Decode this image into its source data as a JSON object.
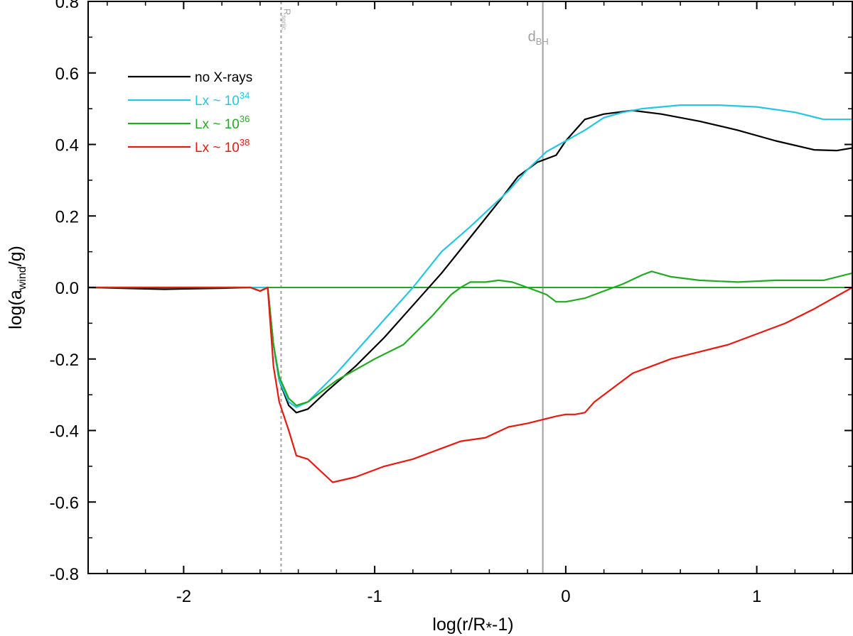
{
  "chart_data": {
    "type": "line",
    "xlabel": {
      "main": "log(r/R",
      "sub": "*",
      "tail": "-1)"
    },
    "ylabel": {
      "main": "log(a",
      "sub": "wind",
      "tail": "/g)"
    },
    "xlim": [
      -2.5,
      1.5
    ],
    "ylim": [
      -0.8,
      0.8
    ],
    "x_ticks": [
      -2,
      -1,
      0,
      1
    ],
    "x_tick_labels": [
      "-2",
      "-1",
      "0",
      "1"
    ],
    "y_ticks": [
      -0.8,
      -0.6,
      -0.4,
      -0.2,
      0.0,
      0.2,
      0.4,
      0.6,
      0.8
    ],
    "y_tick_labels": [
      "-0.8",
      "-0.6",
      "-0.4",
      "-0.2",
      "0.0",
      "0.2",
      "0.4",
      "0.6",
      "0.8"
    ],
    "grid": false,
    "legend_position": "top-left",
    "reference_lines": [
      {
        "label_main": "R",
        "label_sub": "sonic",
        "x": -1.49,
        "style": "dashed",
        "color": "#a0a0a0"
      },
      {
        "label_main": "d",
        "label_sub": "BH",
        "x": -0.12,
        "style": "solid",
        "color": "#a0a0a0"
      },
      {
        "y": 0.0,
        "style": "solid",
        "color": "#22aa22"
      }
    ],
    "series": [
      {
        "name": "no X-rays",
        "name_sup": "",
        "color": "#000000",
        "x": [
          -2.5,
          -2.1,
          -1.8,
          -1.65,
          -1.6,
          -1.56,
          -1.53,
          -1.5,
          -1.45,
          -1.41,
          -1.35,
          -1.25,
          -1.1,
          -0.95,
          -0.8,
          -0.65,
          -0.5,
          -0.35,
          -0.25,
          -0.15,
          -0.05,
          0.0,
          0.05,
          0.1,
          0.2,
          0.35,
          0.5,
          0.7,
          0.9,
          1.1,
          1.3,
          1.42,
          1.5
        ],
        "y": [
          0.0,
          -0.005,
          -0.002,
          0.0,
          -0.01,
          0.0,
          -0.16,
          -0.26,
          -0.33,
          -0.35,
          -0.34,
          -0.29,
          -0.22,
          -0.14,
          -0.05,
          0.04,
          0.14,
          0.24,
          0.31,
          0.35,
          0.37,
          0.41,
          0.44,
          0.47,
          0.485,
          0.495,
          0.485,
          0.465,
          0.44,
          0.41,
          0.385,
          0.383,
          0.39
        ]
      },
      {
        "name": "Lx ~ 10",
        "name_sup": "34",
        "color": "#25c6e0",
        "x": [
          -2.5,
          -2.1,
          -1.8,
          -1.65,
          -1.6,
          -1.56,
          -1.53,
          -1.5,
          -1.45,
          -1.41,
          -1.35,
          -1.2,
          -1.0,
          -0.8,
          -0.65,
          -0.5,
          -0.4,
          -0.3,
          -0.2,
          -0.1,
          0.0,
          0.1,
          0.2,
          0.3,
          0.4,
          0.5,
          0.6,
          0.8,
          1.0,
          1.2,
          1.35,
          1.5
        ],
        "y": [
          0.0,
          0.0,
          0.0,
          0.0,
          0.0,
          0.0,
          -0.16,
          -0.26,
          -0.32,
          -0.335,
          -0.32,
          -0.24,
          -0.12,
          0.0,
          0.1,
          0.17,
          0.22,
          0.27,
          0.33,
          0.38,
          0.41,
          0.44,
          0.475,
          0.49,
          0.5,
          0.505,
          0.51,
          0.51,
          0.505,
          0.49,
          0.47,
          0.47
        ]
      },
      {
        "name": "Lx ~ 10",
        "name_sup": "36",
        "color": "#22aa22",
        "x": [
          -2.5,
          -2.1,
          -1.8,
          -1.65,
          -1.6,
          -1.56,
          -1.53,
          -1.5,
          -1.45,
          -1.41,
          -1.35,
          -1.2,
          -1.0,
          -0.85,
          -0.7,
          -0.6,
          -0.55,
          -0.5,
          -0.42,
          -0.35,
          -0.28,
          -0.2,
          -0.1,
          -0.05,
          0.0,
          0.1,
          0.2,
          0.3,
          0.4,
          0.45,
          0.55,
          0.7,
          0.9,
          1.1,
          1.35,
          1.5
        ],
        "y": [
          0.0,
          0.0,
          0.0,
          0.0,
          -0.01,
          0.0,
          -0.16,
          -0.25,
          -0.31,
          -0.33,
          -0.32,
          -0.26,
          -0.2,
          -0.16,
          -0.08,
          -0.02,
          0.0,
          0.015,
          0.015,
          0.02,
          0.015,
          0.0,
          -0.02,
          -0.04,
          -0.04,
          -0.03,
          -0.01,
          0.01,
          0.035,
          0.045,
          0.03,
          0.02,
          0.015,
          0.02,
          0.02,
          0.04
        ]
      },
      {
        "name": "Lx ~ 10",
        "name_sup": "38",
        "color": "#e8190e",
        "x": [
          -2.5,
          -2.1,
          -1.8,
          -1.65,
          -1.6,
          -1.56,
          -1.53,
          -1.5,
          -1.45,
          -1.41,
          -1.35,
          -1.22,
          -1.1,
          -0.95,
          -0.8,
          -0.65,
          -0.55,
          -0.42,
          -0.3,
          -0.2,
          -0.05,
          0.0,
          0.05,
          0.1,
          0.15,
          0.25,
          0.35,
          0.45,
          0.55,
          0.7,
          0.85,
          1.0,
          1.15,
          1.3,
          1.5
        ],
        "y": [
          0.0,
          0.0,
          0.0,
          0.0,
          -0.01,
          0.0,
          -0.22,
          -0.32,
          -0.4,
          -0.47,
          -0.48,
          -0.545,
          -0.53,
          -0.5,
          -0.48,
          -0.45,
          -0.43,
          -0.42,
          -0.39,
          -0.38,
          -0.36,
          -0.355,
          -0.355,
          -0.35,
          -0.32,
          -0.28,
          -0.24,
          -0.22,
          -0.2,
          -0.18,
          -0.16,
          -0.13,
          -0.1,
          -0.06,
          0.0
        ]
      }
    ]
  }
}
